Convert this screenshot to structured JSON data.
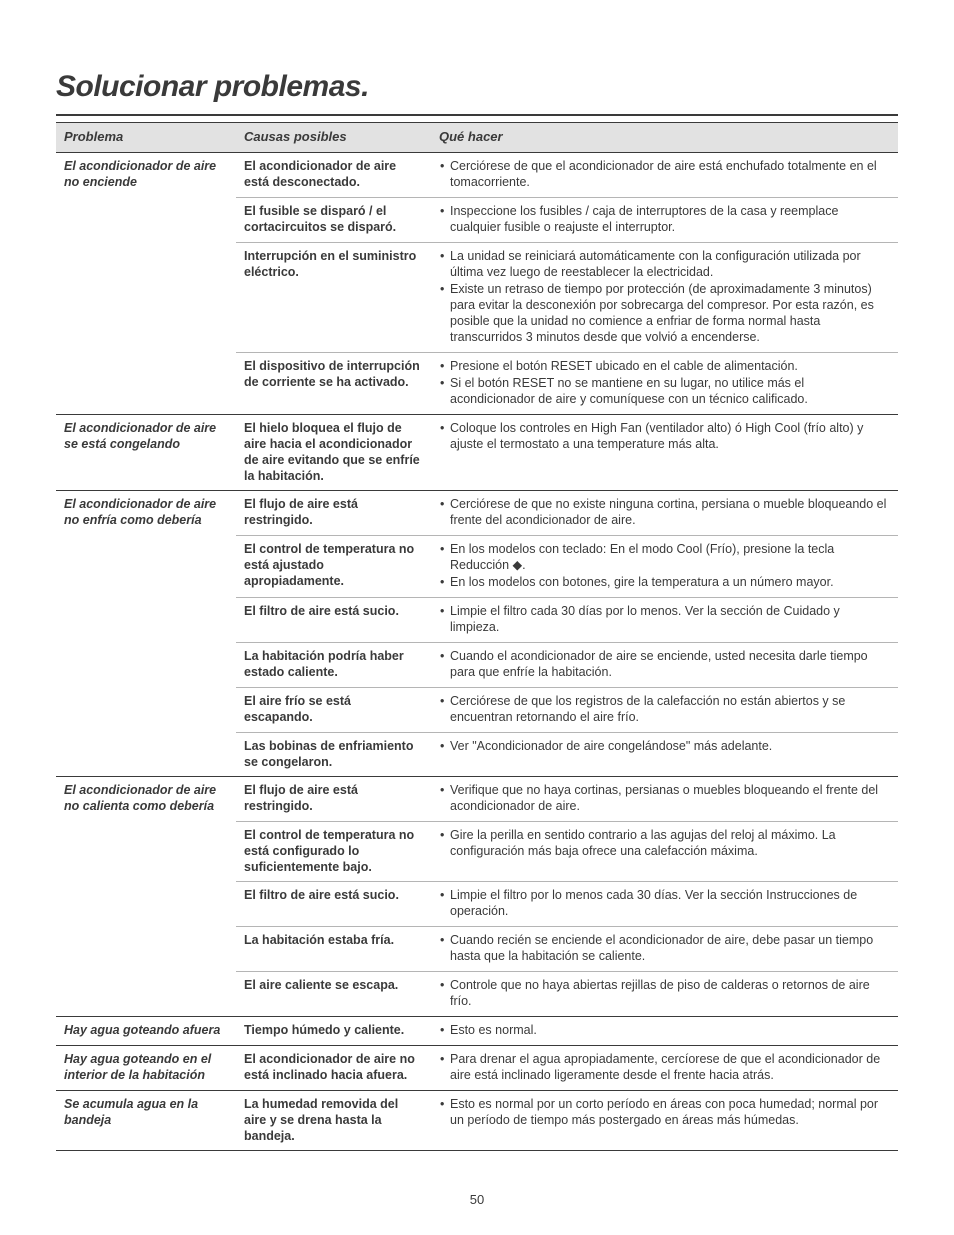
{
  "page": {
    "title": "Solucionar problemas.",
    "pageNumber": "50"
  },
  "table": {
    "headers": {
      "c1": "Problema",
      "c2": "Causas posibles",
      "c3": "Qué hacer"
    },
    "groups": [
      {
        "problem": "El acondicionador de aire no enciende",
        "rows": [
          {
            "cause": "El acondicionador de aire está desconectado.",
            "fixes": [
              "Cerciórese de que el acondicionador de aire está enchufado totalmente en el tomacorriente."
            ]
          },
          {
            "cause": "El fusible se disparó / el cortacircuitos se disparó.",
            "fixes": [
              "Inspeccione los fusibles / caja de interruptores de la casa y reemplace cualquier fusible o reajuste el interruptor."
            ]
          },
          {
            "cause": "Interrupción en el suministro eléctrico.",
            "fixes": [
              "La unidad se reiniciará automáticamente con la configuración utilizada por última vez luego de reestablecer la electricidad.",
              "Existe un retraso de tiempo por protección (de aproximadamente 3 minutos) para evitar la desconexión por sobrecarga del compresor. Por esta razón, es posible que la unidad no comience a enfriar de forma normal hasta transcurridos 3 minutos desde que volvió a encenderse."
            ]
          },
          {
            "cause": "El dispositivo de interrupción de corriente se ha activado.",
            "fixes": [
              "Presione el botón RESET ubicado en el cable de alimentación.",
              "Si el botón RESET no se mantiene en su lugar, no utilice más el acondicionador de aire y comuníquese con un técnico calificado."
            ]
          }
        ]
      },
      {
        "problem": "El acondicionador de aire se está congelando",
        "rows": [
          {
            "cause": "El hielo bloquea el flujo de aire hacia el acondicionador de aire evitando que se enfríe la habitación.",
            "fixes": [
              "Coloque los controles en High Fan (ventilador alto) ó High Cool (frío alto) y ajuste el termostato a una temperature más alta."
            ]
          }
        ]
      },
      {
        "problem": "El acondicionador de aire no enfría como debería",
        "rows": [
          {
            "cause": "El flujo de aire está restringido.",
            "fixes": [
              "Cerciórese de que no existe ninguna cortina, persiana o mueble bloqueando el frente del acondicionador de aire."
            ]
          },
          {
            "cause": "El control de temperatura no está ajustado apropiadamente.",
            "fixes": [
              "En los modelos con teclado: En el modo Cool (Frío), presione la tecla Reducción ◆.",
              "En los modelos con botones, gire la temperatura a un número mayor."
            ]
          },
          {
            "cause": "El filtro de aire está sucio.",
            "fixes": [
              "Limpie el filtro cada 30 días por lo menos. Ver la sección de Cuidado y limpieza."
            ]
          },
          {
            "cause": "La habitación podría haber estado caliente.",
            "fixes": [
              "Cuando el acondicionador de aire se enciende, usted necesita darle tiempo para que enfríe la habitación."
            ]
          },
          {
            "cause": "El aire frío se está escapando.",
            "fixes": [
              "Cerciórese de que los registros de la calefacción no están abiertos y se encuentran retornando el aire frío."
            ]
          },
          {
            "cause": "Las bobinas de enfriamiento se congelaron.",
            "fixes": [
              "Ver \"Acondicionador de aire congelándose\" más adelante."
            ]
          }
        ]
      },
      {
        "problem": "El acondicionador de  aire no calienta como debería",
        "rows": [
          {
            "cause": "El flujo de aire está restringido.",
            "fixes": [
              "Verifique que no haya cortinas, persianas o muebles bloqueando el frente del acondicionador de aire."
            ]
          },
          {
            "cause": "El control de temperatura no está configurado lo suficientemente bajo.",
            "fixes": [
              "Gire la perilla en sentido contrario a las agujas del reloj al máximo. La configuración más baja ofrece una calefacción máxima."
            ]
          },
          {
            "cause": "El filtro de aire está sucio.",
            "fixes": [
              "Limpie el filtro por lo menos cada 30 días. Ver la sección Instrucciones de operación."
            ]
          },
          {
            "cause": "La habitación estaba fría.",
            "fixes": [
              "Cuando recién se enciende el acondicionador de aire, debe pasar un tiempo hasta que la habitación se caliente."
            ]
          },
          {
            "cause": "El aire caliente se escapa.",
            "fixes": [
              "Controle que no haya abiertas rejillas de piso de calderas o retornos de aire frío."
            ]
          }
        ]
      },
      {
        "problem": "Hay agua goteando afuera",
        "rows": [
          {
            "cause": "Tiempo húmedo y caliente.",
            "fixes": [
              "Esto es normal."
            ]
          }
        ]
      },
      {
        "problem": "Hay agua goteando en el interior de la habitación",
        "rows": [
          {
            "cause": "El acondicionador de aire no está inclinado hacia afuera.",
            "fixes": [
              "Para drenar el agua apropiadamente, cercíorese de que el acondicionador de aire está inclinado ligeramente desde el frente hacia atrás."
            ]
          }
        ]
      },
      {
        "problem": "Se acumula agua en la bandeja",
        "rows": [
          {
            "cause": "La humedad removida del aire y se drena hasta la bandeja.",
            "fixes": [
              "Esto es normal por un corto período en áreas con poca humedad; normal por un período de tiempo más postergado en áreas más húmedas."
            ]
          }
        ]
      }
    ]
  }
}
